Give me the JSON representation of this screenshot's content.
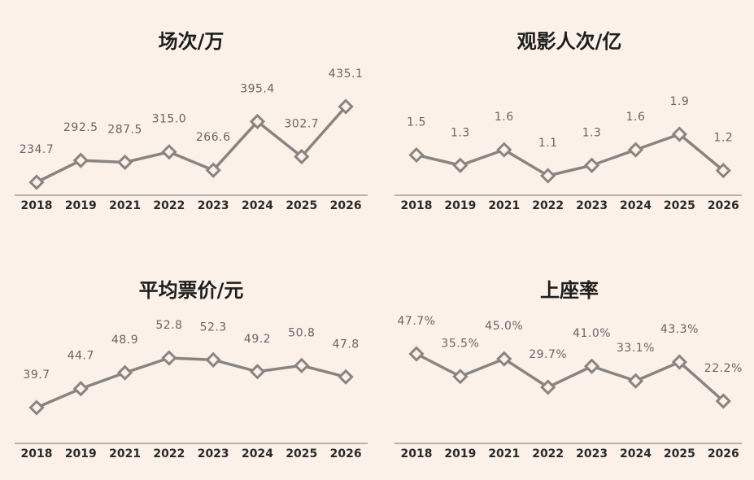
{
  "chart_data": [
    {
      "type": "line",
      "title": "场次/万",
      "categories": [
        "2018",
        "2019",
        "2021",
        "2022",
        "2023",
        "2024",
        "2025",
        "2026"
      ],
      "values": [
        234.7,
        292.5,
        287.5,
        315.0,
        266.6,
        395.4,
        302.7,
        435.1
      ],
      "color": "#8a8480",
      "value_labels": [
        "234.7",
        "292.5",
        "287.5",
        "315.0",
        "266.6",
        "395.4",
        "302.7",
        "435.1"
      ]
    },
    {
      "type": "line",
      "title": "观影人次/亿",
      "categories": [
        "2018",
        "2019",
        "2021",
        "2022",
        "2023",
        "2024",
        "2025",
        "2026"
      ],
      "values": [
        1.5,
        1.3,
        1.6,
        1.1,
        1.3,
        1.6,
        1.9,
        1.2
      ],
      "color": "#8a8480"
    },
    {
      "type": "line",
      "title": "平均票价/元",
      "categories": [
        "2018",
        "2019",
        "2021",
        "2022",
        "2023",
        "2024",
        "2025",
        "2026"
      ],
      "values": [
        39.7,
        44.7,
        48.9,
        52.8,
        52.3,
        49.2,
        50.8,
        47.8
      ],
      "color": "#8a8480"
    },
    {
      "type": "line",
      "title": "上座率",
      "categories": [
        "2018",
        "2019",
        "2021",
        "2022",
        "2023",
        "2024",
        "2025",
        "2026"
      ],
      "values": [
        47.7,
        35.5,
        45.0,
        29.7,
        41.0,
        33.1,
        43.3,
        22.2
      ],
      "color": "#8a8480",
      "value_labels": [
        "47.7%",
        "35.5%",
        "45.0%",
        "29.7%",
        "41.0%",
        "33.1%",
        "43.3%",
        "22.2%"
      ]
    }
  ]
}
